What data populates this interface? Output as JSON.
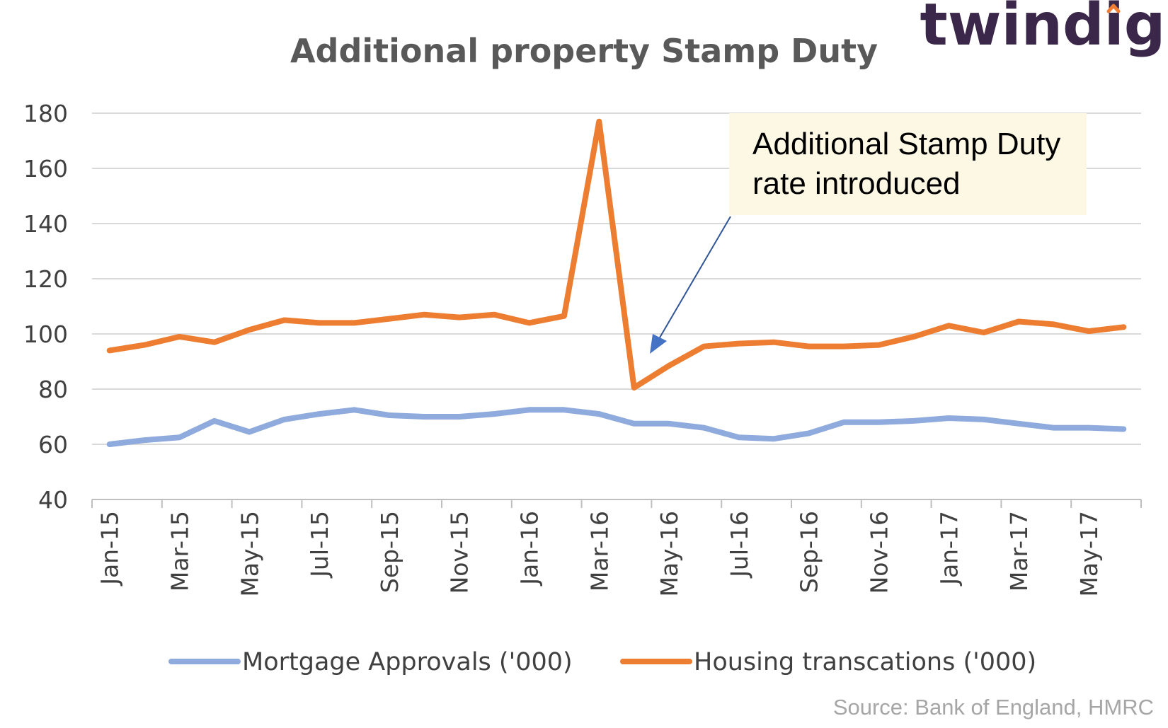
{
  "brand": {
    "logo_text": "twindig",
    "colors": {
      "text": "#3b2749",
      "accent": "#f07d33"
    }
  },
  "source": "Source: Bank of England, HMRC",
  "annotation": {
    "lines": [
      "Additional Stamp Duty",
      "rate introduced"
    ],
    "target_category": "Apr-16"
  },
  "chart_data": {
    "type": "line",
    "title": "Additional property Stamp Duty",
    "xlabel": "",
    "ylabel": "",
    "ylim": [
      40,
      180
    ],
    "yticks": [
      40,
      60,
      80,
      100,
      120,
      140,
      160,
      180
    ],
    "grid": true,
    "legend_position": "bottom",
    "categories": [
      "Jan-15",
      "Feb-15",
      "Mar-15",
      "Apr-15",
      "May-15",
      "Jun-15",
      "Jul-15",
      "Aug-15",
      "Sep-15",
      "Oct-15",
      "Nov-15",
      "Dec-15",
      "Jan-16",
      "Feb-16",
      "Mar-16",
      "Apr-16",
      "May-16",
      "Jun-16",
      "Jul-16",
      "Aug-16",
      "Sep-16",
      "Oct-16",
      "Nov-16",
      "Dec-16",
      "Jan-17",
      "Feb-17",
      "Mar-17",
      "Apr-17",
      "May-17",
      "Jun-17"
    ],
    "tick_labels": [
      "Jan-15",
      "Mar-15",
      "May-15",
      "Jul-15",
      "Sep-15",
      "Nov-15",
      "Jan-16",
      "Mar-16",
      "May-16",
      "Jul-16",
      "Sep-16",
      "Nov-16",
      "Jan-17",
      "Mar-17",
      "May-17"
    ],
    "series": [
      {
        "name": "Mortgage Approvals ('000)",
        "color": "#8faadc",
        "values": [
          60,
          61.5,
          62.5,
          68.5,
          64.5,
          69,
          71,
          72.5,
          70.5,
          70,
          70,
          71,
          72.5,
          72.5,
          71,
          67.5,
          67.5,
          66,
          62.5,
          62,
          64,
          68,
          68,
          68.5,
          69.5,
          69,
          67.5,
          66,
          66,
          65.5
        ]
      },
      {
        "name": "Housing transcations ('000)",
        "color": "#ed7d31",
        "values": [
          94,
          96,
          99,
          97,
          101.5,
          105,
          104,
          104,
          105.5,
          107,
          106,
          107,
          104,
          106.5,
          177,
          80.5,
          88.5,
          95.5,
          96.5,
          97,
          95.5,
          95.5,
          96,
          99,
          103,
          100.5,
          104.5,
          103.5,
          101,
          102.5
        ]
      }
    ]
  }
}
